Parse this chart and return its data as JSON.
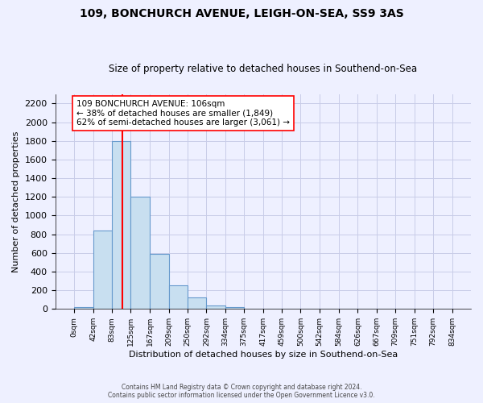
{
  "title": "109, BONCHURCH AVENUE, LEIGH-ON-SEA, SS9 3AS",
  "subtitle": "Size of property relative to detached houses in Southend-on-Sea",
  "xlabel": "Distribution of detached houses by size in Southend-on-Sea",
  "ylabel": "Number of detached properties",
  "bar_color": "#c8dff0",
  "bar_edge_color": "#6699cc",
  "vline_x": 106,
  "vline_color": "red",
  "bin_edges": [
    0,
    42,
    83,
    125,
    167,
    209,
    250,
    292,
    334,
    375,
    417,
    459,
    500,
    542,
    584,
    626,
    667,
    709,
    751,
    792,
    834
  ],
  "bar_heights": [
    20,
    840,
    1800,
    1200,
    590,
    255,
    120,
    40,
    20,
    0,
    0,
    0,
    0,
    0,
    0,
    0,
    0,
    0,
    0,
    0
  ],
  "tick_labels": [
    "0sqm",
    "42sqm",
    "83sqm",
    "125sqm",
    "167sqm",
    "209sqm",
    "250sqm",
    "292sqm",
    "334sqm",
    "375sqm",
    "417sqm",
    "459sqm",
    "500sqm",
    "542sqm",
    "584sqm",
    "626sqm",
    "667sqm",
    "709sqm",
    "751sqm",
    "792sqm",
    "834sqm"
  ],
  "ylim": [
    0,
    2300
  ],
  "ann_line1": "109 BONCHURCH AVENUE: 106sqm",
  "ann_line2": "← 38% of detached houses are smaller (1,849)",
  "ann_line3": "62% of semi-detached houses are larger (3,061) →",
  "footer_line1": "Contains HM Land Registry data © Crown copyright and database right 2024.",
  "footer_line2": "Contains public sector information licensed under the Open Government Licence v3.0.",
  "background_color": "#eef0ff",
  "plot_bg_color": "#eef0ff",
  "grid_color": "#c8cce8",
  "ytick_step": 200
}
